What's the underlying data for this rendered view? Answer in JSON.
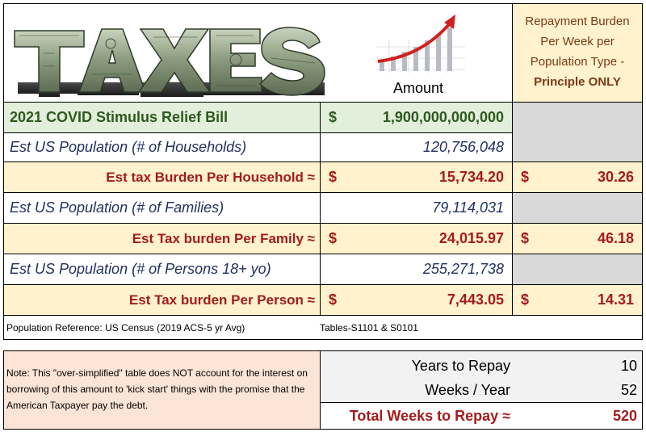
{
  "header": {
    "logo_alt_text": "TAXES",
    "amount_label": "Amount",
    "repayment_header_line1": "Repayment Burden",
    "repayment_header_line2": "Per Week per",
    "repayment_header_line3": "Population Type -",
    "repayment_header_line4": "Principle ONLY"
  },
  "rows": [
    {
      "label": "2021 COVID Stimulus Relief Bill",
      "dollar": "$",
      "amount": "1,900,000,000,000",
      "weekly_dollar": "",
      "weekly": ""
    },
    {
      "label": "Est US Population (# of Households)",
      "dollar": "",
      "amount": "120,756,048",
      "weekly_dollar": "",
      "weekly": ""
    },
    {
      "label": "Est tax Burden Per Household ≈",
      "dollar": "$",
      "amount": "15,734.20",
      "weekly_dollar": "$",
      "weekly": "30.26"
    },
    {
      "label": "Est US Population (# of Families)",
      "dollar": "",
      "amount": "79,114,031",
      "weekly_dollar": "",
      "weekly": ""
    },
    {
      "label": "Est Tax burden Per Family ≈",
      "dollar": "$",
      "amount": "24,015.97",
      "weekly_dollar": "$",
      "weekly": "46.18"
    },
    {
      "label": "Est US Population (# of Persons 18+ yo)",
      "dollar": "",
      "amount": "255,271,738",
      "weekly_dollar": "",
      "weekly": ""
    },
    {
      "label": "Est Tax burden Per Person ≈",
      "dollar": "$",
      "amount": "7,443.05",
      "weekly_dollar": "$",
      "weekly": "14.31"
    }
  ],
  "reference": {
    "source": "Population Reference: US Census (2019 ACS-5 yr Avg)",
    "tables": "Tables-S1101 & S0101"
  },
  "note": {
    "text": "Note: This \"over-simplified\" table does NOT account for the interest on borrowing of this amount to 'kick start' things with the promise that the American Taxpayer pay the debt."
  },
  "repay": {
    "years_label": "Years to Repay",
    "years_value": "10",
    "weeks_label": "Weeks / Year",
    "weeks_value": "52",
    "total_label": "Total Weeks to Repay ≈",
    "total_value": "520"
  },
  "colors": {
    "green_fill": "#e2efda",
    "yellow_fill": "#fff2cc",
    "gray_fill": "#d9d9d9",
    "light_gray_fill": "#f2f2f2",
    "note_fill": "#fce4d6",
    "navy_text": "#1f2f5e",
    "red_text": "#a31c1c",
    "green_text": "#2d5a1e"
  }
}
